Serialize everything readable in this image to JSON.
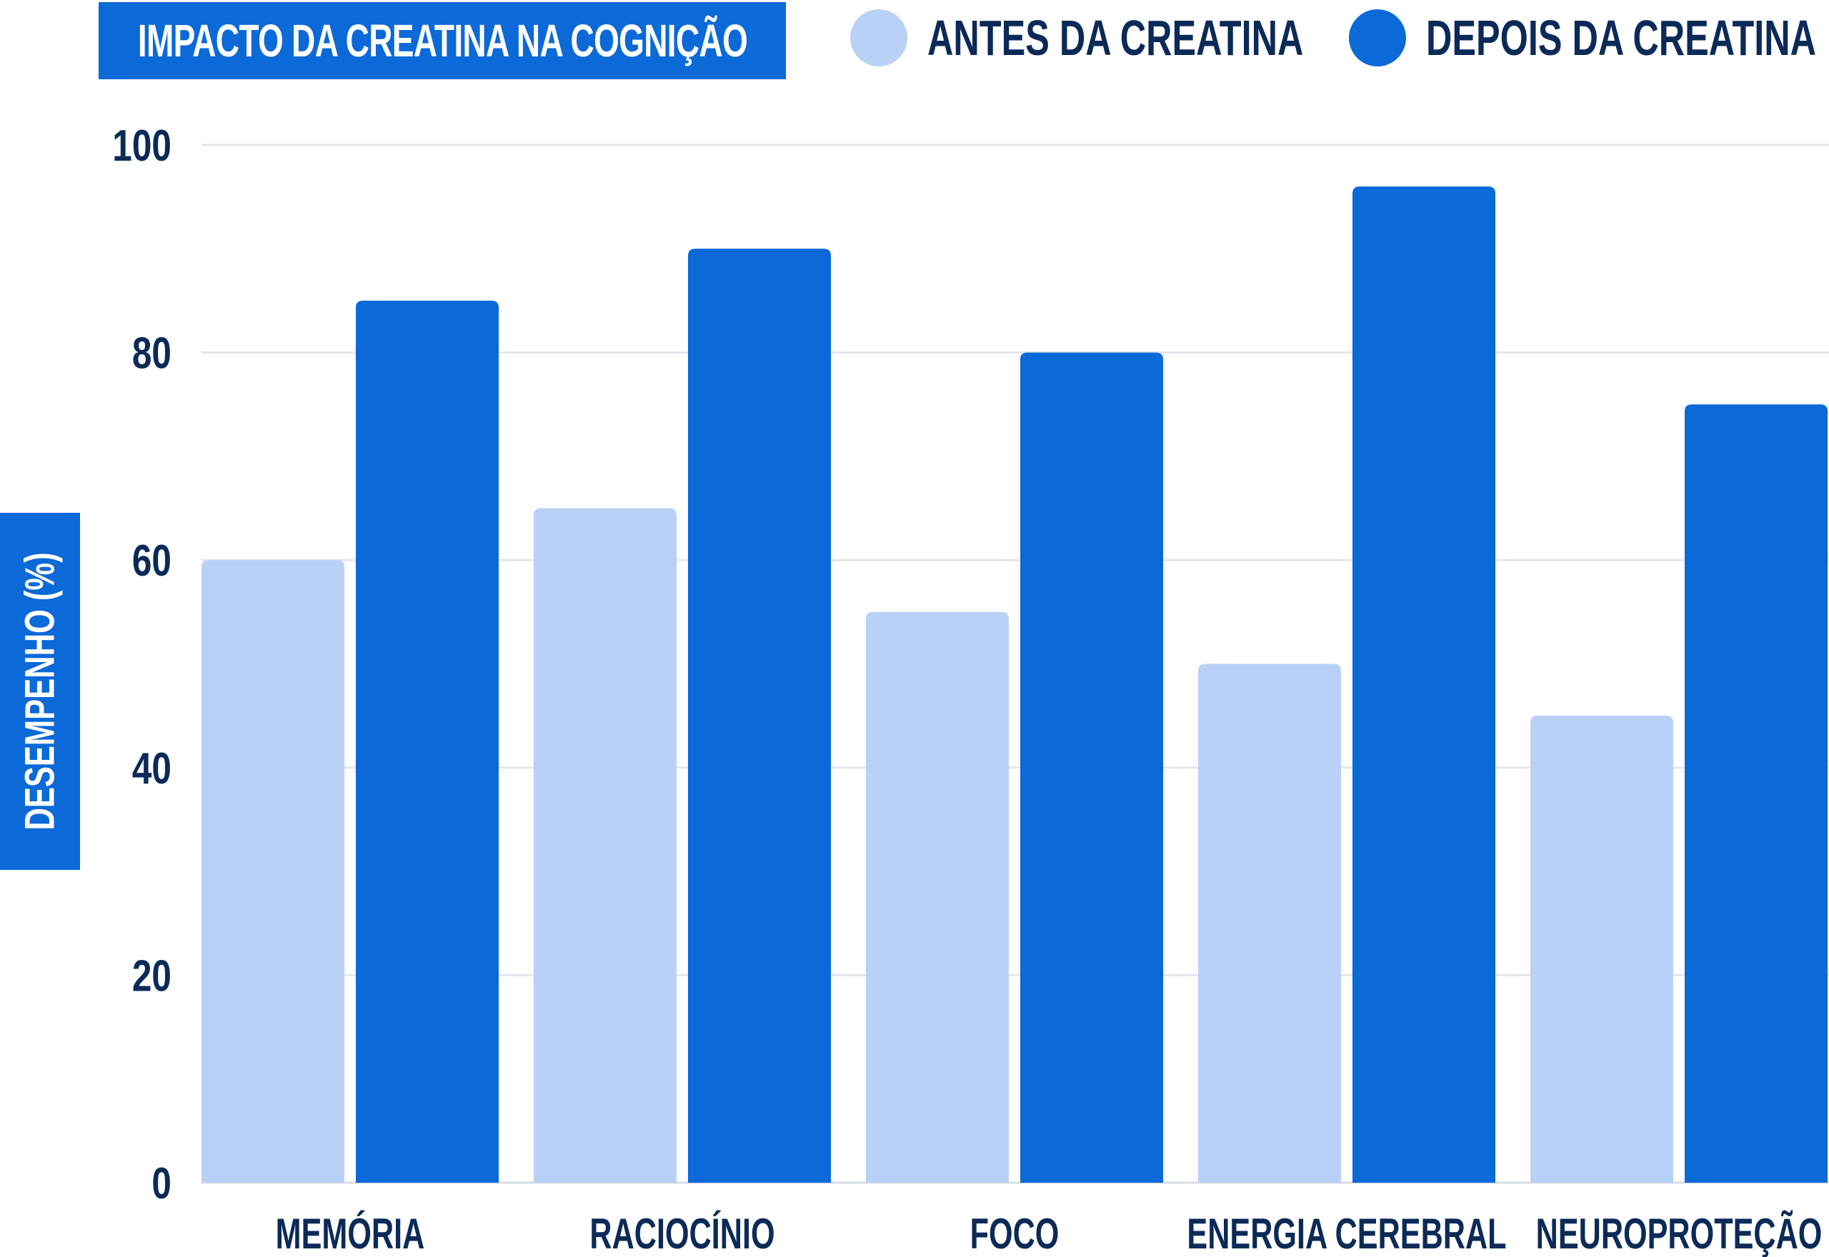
{
  "chart_data": {
    "type": "bar",
    "title": "IMPACTO DA CREATINA NA COGNIÇÃO",
    "ylabel": "DESEMPENHO (%)",
    "xlabel": "",
    "ylim": [
      0,
      100
    ],
    "yticks": [
      0,
      20,
      40,
      60,
      80,
      100
    ],
    "grid": true,
    "legend_position": "top-right",
    "categories": [
      "MEMÓRIA",
      "RACIOCÍNIO",
      "FOCO",
      "ENERGIA CEREBRAL",
      "NEUROPROTEÇÃO"
    ],
    "series": [
      {
        "name": "ANTES DA CREATINA",
        "color": "#bad1f7",
        "values": [
          60,
          65,
          55,
          50,
          45
        ]
      },
      {
        "name": "DEPOIS DA CREATINA",
        "color": "#0b69d8",
        "values": [
          85,
          90,
          80,
          96,
          75
        ]
      }
    ]
  },
  "colors": {
    "accent": "#0b69d8",
    "text": "#0b2a57",
    "grid": "#e3e6ec"
  }
}
